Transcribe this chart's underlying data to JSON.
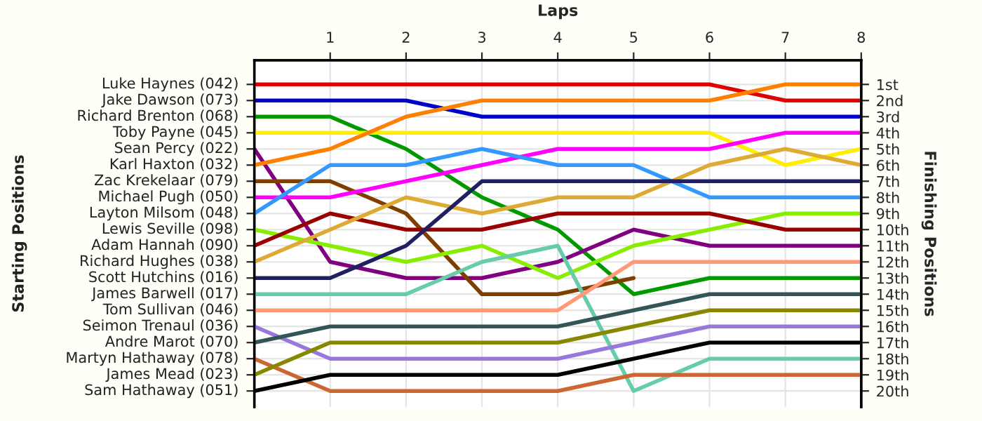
{
  "chart_data": {
    "type": "line",
    "xlabel": "Laps",
    "annotations": [
      "Starting Positions"
    ],
    "y2label": "Finishing Positions",
    "x": [
      0,
      1,
      2,
      3,
      4,
      5,
      6,
      7,
      8
    ],
    "xlim": [
      0,
      8
    ],
    "xticks": [
      1,
      2,
      3,
      4,
      5,
      6,
      7,
      8
    ],
    "y2lim": [
      21,
      -0.5
    ],
    "y2ticks": [
      {
        "value": 1,
        "label": "1st"
      },
      {
        "value": 2,
        "label": "2nd"
      },
      {
        "value": 3,
        "label": "3rd"
      },
      {
        "value": 4,
        "label": "4th"
      },
      {
        "value": 5,
        "label": "5th"
      },
      {
        "value": 6,
        "label": "6th"
      },
      {
        "value": 7,
        "label": "7th"
      },
      {
        "value": 8,
        "label": "8th"
      },
      {
        "value": 9,
        "label": "9th"
      },
      {
        "value": 10,
        "label": "10th"
      },
      {
        "value": 11,
        "label": "11th"
      },
      {
        "value": 12,
        "label": "12th"
      },
      {
        "value": 13,
        "label": "13th"
      },
      {
        "value": 14,
        "label": "14th"
      },
      {
        "value": 15,
        "label": "15th"
      },
      {
        "value": 16,
        "label": "16th"
      },
      {
        "value": 17,
        "label": "17th"
      },
      {
        "value": 18,
        "label": "18th"
      },
      {
        "value": 19,
        "label": "19th"
      },
      {
        "value": 20,
        "label": "20th"
      }
    ],
    "grid": true,
    "line_style": "solid",
    "series": [
      {
        "name": "Luke Haynes (042)",
        "axis": "y2",
        "color": "#e00000",
        "values": [
          1,
          1,
          1,
          1,
          1,
          1,
          1,
          2,
          2
        ]
      },
      {
        "name": "Jake Dawson (073)",
        "axis": "y2",
        "color": "#0000cc",
        "values": [
          2,
          2,
          2,
          3,
          3,
          3,
          3,
          3,
          3
        ]
      },
      {
        "name": "Richard Brenton (068)",
        "axis": "y2",
        "color": "#009900",
        "values": [
          3,
          3,
          5,
          8,
          10,
          14,
          13,
          13,
          13
        ]
      },
      {
        "name": "Toby Payne (045)",
        "axis": "y2",
        "color": "#ffee00",
        "values": [
          4,
          4,
          4,
          4,
          4,
          4,
          4,
          6,
          5
        ]
      },
      {
        "name": "Sean Percy (022)",
        "axis": "y2",
        "color": "#800080",
        "values": [
          5,
          12,
          13,
          13,
          12,
          10,
          11,
          11,
          11
        ]
      },
      {
        "name": "Karl Haxton (032)",
        "axis": "y2",
        "color": "#ff8000",
        "values": [
          6,
          5,
          3,
          2,
          2,
          2,
          2,
          1,
          1
        ]
      },
      {
        "name": "Zac Krekelaar (079)",
        "axis": "y2",
        "color": "#7f3f00",
        "values": [
          7,
          7,
          9,
          14,
          14,
          13,
          null,
          null,
          null
        ]
      },
      {
        "name": "Michael Pugh (050)",
        "axis": "y2",
        "color": "#ff00ff",
        "values": [
          8,
          8,
          7,
          6,
          5,
          5,
          5,
          4,
          4
        ]
      },
      {
        "name": "Layton Milsom (048)",
        "axis": "y2",
        "color": "#3399ff",
        "values": [
          9,
          6,
          6,
          5,
          6,
          6,
          8,
          8,
          8
        ]
      },
      {
        "name": "Lewis Seville (098)",
        "axis": "y2",
        "color": "#88ee00",
        "values": [
          10,
          11,
          12,
          11,
          13,
          11,
          10,
          9,
          9
        ]
      },
      {
        "name": "Adam Hannah (090)",
        "axis": "y2",
        "color": "#990000",
        "values": [
          11,
          9,
          10,
          10,
          9,
          9,
          9,
          10,
          10
        ]
      },
      {
        "name": "Richard Hughes (038)",
        "axis": "y2",
        "color": "#ddaa33",
        "values": [
          12,
          10,
          8,
          9,
          8,
          8,
          6,
          5,
          6
        ]
      },
      {
        "name": "Scott Hutchins (016)",
        "axis": "y2",
        "color": "#202060",
        "values": [
          13,
          13,
          11,
          7,
          7,
          7,
          7,
          7,
          7
        ]
      },
      {
        "name": "James Barwell (017)",
        "axis": "y2",
        "color": "#66ccaa",
        "values": [
          14,
          14,
          14,
          12,
          11,
          20,
          18,
          18,
          18
        ]
      },
      {
        "name": "Tom Sullivan (046)",
        "axis": "y2",
        "color": "#ff9977",
        "values": [
          15,
          15,
          15,
          15,
          15,
          12,
          12,
          12,
          12
        ]
      },
      {
        "name": "Seimon Trenaul (036)",
        "axis": "y2",
        "color": "#9977dd",
        "values": [
          16,
          18,
          18,
          18,
          18,
          17,
          16,
          16,
          16
        ]
      },
      {
        "name": "Andre Marot (070)",
        "axis": "y2",
        "color": "#335555",
        "values": [
          17,
          16,
          16,
          16,
          16,
          15,
          14,
          14,
          14
        ]
      },
      {
        "name": "Martyn Hathaway (078)",
        "axis": "y2",
        "color": "#cc6633",
        "values": [
          18,
          20,
          20,
          20,
          20,
          19,
          19,
          19,
          19
        ]
      },
      {
        "name": "James Mead (023)",
        "axis": "y2",
        "color": "#888800",
        "values": [
          19,
          17,
          17,
          17,
          17,
          16,
          15,
          15,
          15
        ]
      },
      {
        "name": "Sam Hathaway (051)",
        "axis": "y2",
        "color": "#000000",
        "values": [
          20,
          19,
          19,
          19,
          19,
          18,
          17,
          17,
          17
        ]
      }
    ]
  }
}
